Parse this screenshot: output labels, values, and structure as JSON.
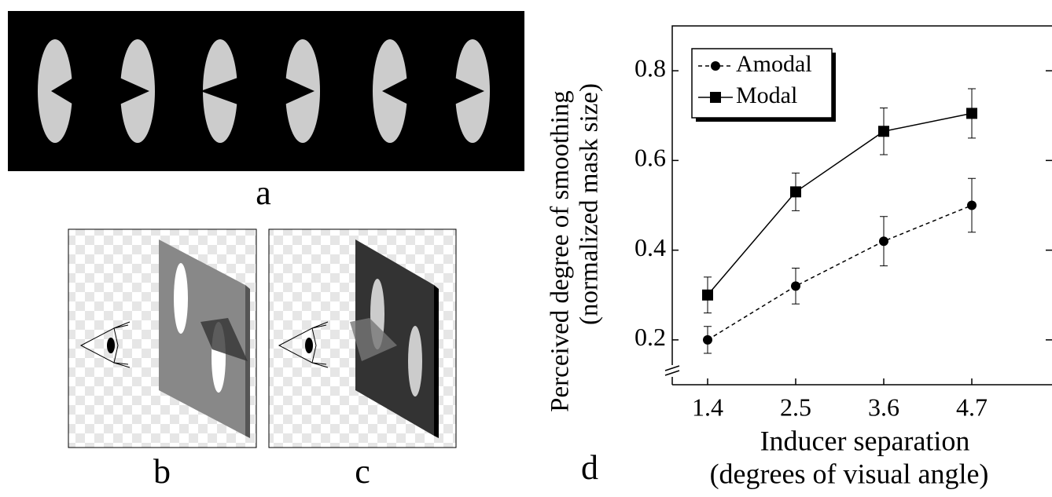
{
  "panels": {
    "a": "a",
    "b": "b",
    "c": "c",
    "d": "d"
  },
  "chart_data": {
    "type": "line",
    "ylabel": [
      "Perceived degree of smoothing",
      "(normalized mask size)"
    ],
    "xlabel": [
      "Inducer separation",
      "(degrees of visual angle)"
    ],
    "categories": [
      "1.4",
      "2.5",
      "3.6",
      "4.7"
    ],
    "series": [
      {
        "name": "Amodal",
        "color": "#000000",
        "dash": true,
        "marker": "circle",
        "values": [
          0.2,
          0.32,
          0.42,
          0.5
        ],
        "errors": [
          0.03,
          0.04,
          0.055,
          0.06
        ]
      },
      {
        "name": "Modal",
        "color": "#000000",
        "dash": false,
        "marker": "square",
        "values": [
          0.3,
          0.53,
          0.665,
          0.705
        ],
        "errors": [
          0.04,
          0.042,
          0.052,
          0.055
        ]
      }
    ],
    "ylim": [
      0.1,
      0.9
    ],
    "yticks": [
      0.2,
      0.4,
      0.6,
      0.8
    ],
    "legend": "upper-left"
  }
}
